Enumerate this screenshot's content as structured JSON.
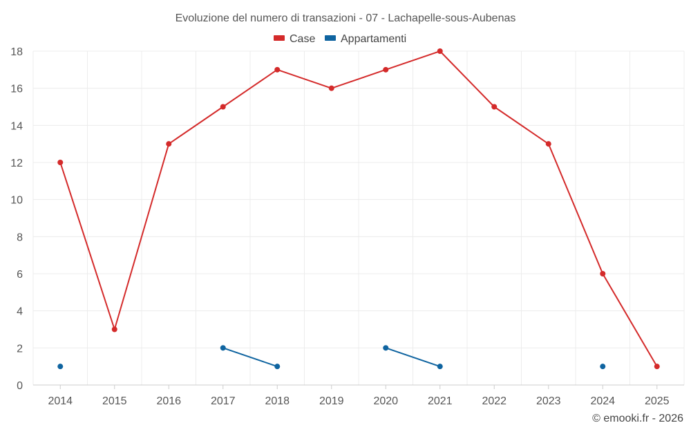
{
  "chart_data": {
    "type": "line",
    "title": "Evoluzione del numero di transazioni - 07 - Lachapelle-sous-Aubenas",
    "x": [
      "2014",
      "2015",
      "2016",
      "2017",
      "2018",
      "2019",
      "2020",
      "2021",
      "2022",
      "2023",
      "2024",
      "2025"
    ],
    "ylim": [
      0,
      18
    ],
    "yticks": [
      0,
      2,
      4,
      6,
      8,
      10,
      12,
      14,
      16,
      18
    ],
    "grid": true,
    "legend_position": "top-center",
    "series": [
      {
        "name": "Case",
        "color": "#d42a2a",
        "values": [
          12,
          3,
          13,
          15,
          17,
          16,
          17,
          18,
          15,
          13,
          6,
          1
        ]
      },
      {
        "name": "Appartamenti",
        "color": "#0f64a0",
        "values": [
          1,
          null,
          null,
          2,
          1,
          null,
          2,
          1,
          null,
          null,
          1,
          null
        ]
      }
    ]
  },
  "credit": "© emooki.fr - 2026"
}
